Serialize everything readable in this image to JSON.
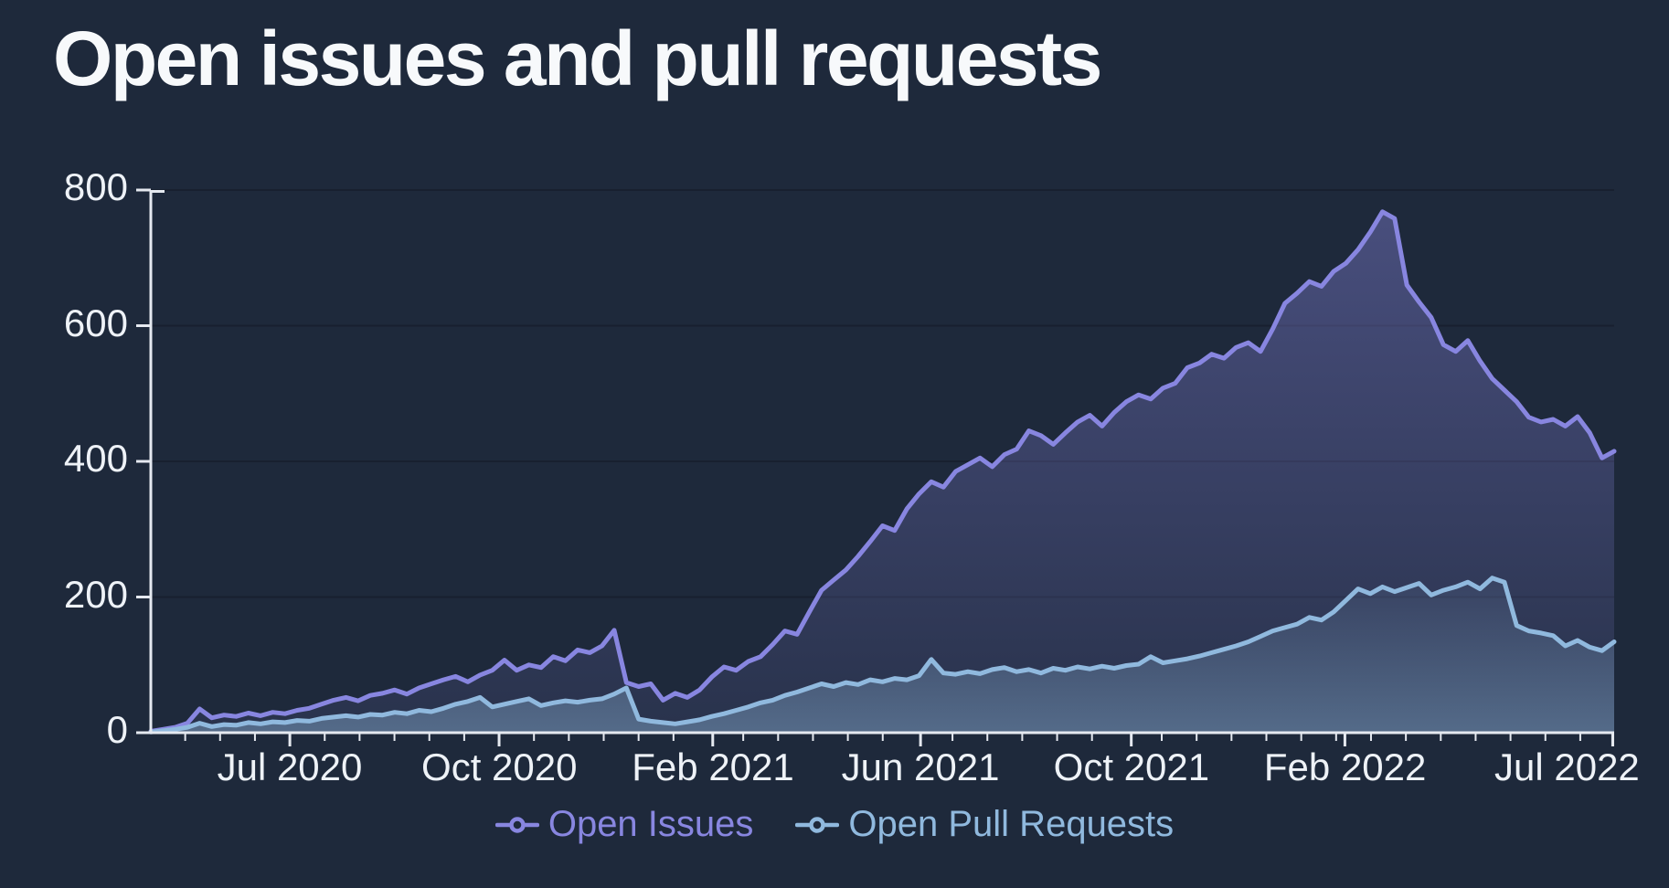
{
  "title": "Open issues and pull requests",
  "background": "#1e293b",
  "axis": {
    "line_color": "#e5e9f0",
    "label_color": "#eef2f7",
    "grid_color": "#18202f"
  },
  "chart_data": {
    "type": "area",
    "title": "Open issues and pull requests",
    "xlabel": "",
    "ylabel": "",
    "ylim": [
      0,
      800
    ],
    "grid": "horizontal",
    "legend_position": "bottom",
    "x_start_date": "2020-03-15",
    "x_step_days": 7,
    "x_ticks": [
      {
        "label": "Jul 2020",
        "pos": 0.095
      },
      {
        "label": "Oct 2020",
        "pos": 0.238
      },
      {
        "label": "Feb 2021",
        "pos": 0.384
      },
      {
        "label": "Jun 2021",
        "pos": 0.526
      },
      {
        "label": "Oct 2021",
        "pos": 0.67
      },
      {
        "label": "Feb 2022",
        "pos": 0.816
      },
      {
        "label": "Jul 2022",
        "pos": 0.999
      }
    ],
    "y_ticks": [
      {
        "value": 0,
        "label": "0"
      },
      {
        "value": 200,
        "label": "200"
      },
      {
        "value": 400,
        "label": "400"
      },
      {
        "value": 600,
        "label": "600"
      },
      {
        "value": 800,
        "label": "800"
      }
    ],
    "series": [
      {
        "name": "Open Issues",
        "color": "#8886e0",
        "fill_top": "rgba(136,134,224,0.40)",
        "fill_bottom": "rgba(136,134,224,0.10)",
        "values": [
          2,
          5,
          8,
          14,
          35,
          22,
          26,
          24,
          29,
          25,
          30,
          28,
          33,
          36,
          42,
          48,
          52,
          47,
          55,
          58,
          63,
          57,
          66,
          72,
          78,
          83,
          75,
          85,
          92,
          107,
          92,
          100,
          96,
          112,
          106,
          122,
          118,
          128,
          151,
          74,
          68,
          72,
          48,
          58,
          52,
          63,
          82,
          97,
          92,
          105,
          112,
          130,
          150,
          145,
          178,
          210,
          225,
          240,
          260,
          282,
          305,
          298,
          330,
          352,
          370,
          362,
          385,
          395,
          405,
          392,
          410,
          418,
          445,
          438,
          425,
          442,
          458,
          468,
          452,
          472,
          488,
          498,
          492,
          508,
          515,
          538,
          545,
          558,
          552,
          568,
          575,
          562,
          595,
          633,
          648,
          665,
          658,
          680,
          692,
          712,
          738,
          768,
          758,
          660,
          635,
          612,
          572,
          562,
          578,
          548,
          522,
          505,
          488,
          465,
          458,
          462,
          452,
          466,
          442,
          405,
          415
        ]
      },
      {
        "name": "Open Pull Requests",
        "color": "#90b9de",
        "fill_top": "rgba(144,185,222,0.06)",
        "fill_bottom": "rgba(144,185,222,0.42)",
        "values": [
          1,
          3,
          5,
          8,
          14,
          9,
          12,
          11,
          15,
          13,
          16,
          15,
          18,
          17,
          21,
          23,
          25,
          23,
          27,
          26,
          30,
          28,
          33,
          31,
          36,
          42,
          46,
          52,
          38,
          42,
          46,
          50,
          40,
          44,
          47,
          45,
          48,
          50,
          57,
          66,
          20,
          17,
          15,
          13,
          16,
          19,
          24,
          28,
          33,
          38,
          44,
          48,
          55,
          60,
          66,
          72,
          68,
          74,
          71,
          78,
          75,
          80,
          78,
          84,
          108,
          88,
          86,
          90,
          87,
          93,
          96,
          90,
          93,
          88,
          95,
          92,
          97,
          94,
          98,
          95,
          99,
          101,
          112,
          103,
          106,
          109,
          113,
          118,
          123,
          128,
          134,
          142,
          150,
          155,
          160,
          170,
          166,
          178,
          195,
          212,
          205,
          215,
          208,
          214,
          220,
          203,
          210,
          215,
          222,
          212,
          228,
          222,
          158,
          150,
          147,
          143,
          128,
          136,
          126,
          121,
          134
        ]
      }
    ]
  }
}
